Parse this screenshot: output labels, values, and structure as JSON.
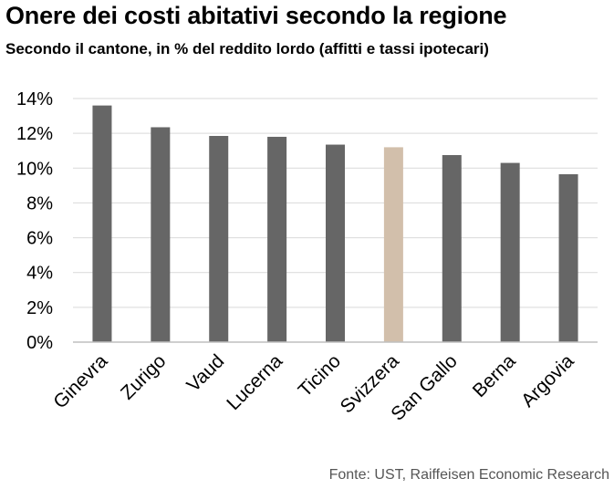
{
  "colors": {
    "bar": "#666666",
    "highlight": "#d2bfab",
    "grid": "#d9d9d9",
    "axis": "#bfbfbf"
  },
  "chart_data": {
    "type": "bar",
    "title": "Onere dei costi abitativi secondo la regione",
    "subtitle": "Secondo il cantone, in % del reddito lordo (affitti e tassi ipotecari)",
    "source": "Fonte: UST, Raiffeisen Economic Research",
    "categories": [
      "Ginevra",
      "Zurigo",
      "Vaud",
      "Lucerna",
      "Ticino",
      "Svizzera",
      "San Gallo",
      "Berna",
      "Argovia"
    ],
    "values": [
      13.6,
      12.35,
      11.85,
      11.8,
      11.35,
      11.2,
      10.75,
      10.3,
      9.65
    ],
    "highlight_category": "Svizzera",
    "ylim": [
      0,
      14
    ],
    "yticks": [
      0,
      2,
      4,
      6,
      8,
      10,
      12,
      14
    ],
    "ytick_labels": [
      "0%",
      "2%",
      "4%",
      "6%",
      "8%",
      "10%",
      "12%",
      "14%"
    ],
    "xlabel": "",
    "ylabel": "",
    "grid": true
  }
}
